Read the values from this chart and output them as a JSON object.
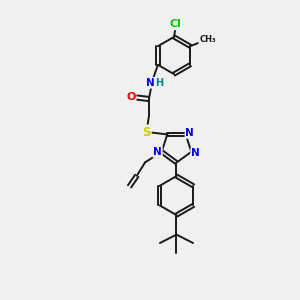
{
  "bg_color": "#f0f0f0",
  "bond_color": "#1a1a1a",
  "bond_width": 1.4,
  "atom_colors": {
    "N": "#0000ee",
    "O": "#ee0000",
    "S": "#cccc00",
    "Cl": "#00cc00",
    "H": "#008888"
  },
  "font_size": 7.5,
  "fig_width": 3.0,
  "fig_height": 3.0,
  "dpi": 100
}
